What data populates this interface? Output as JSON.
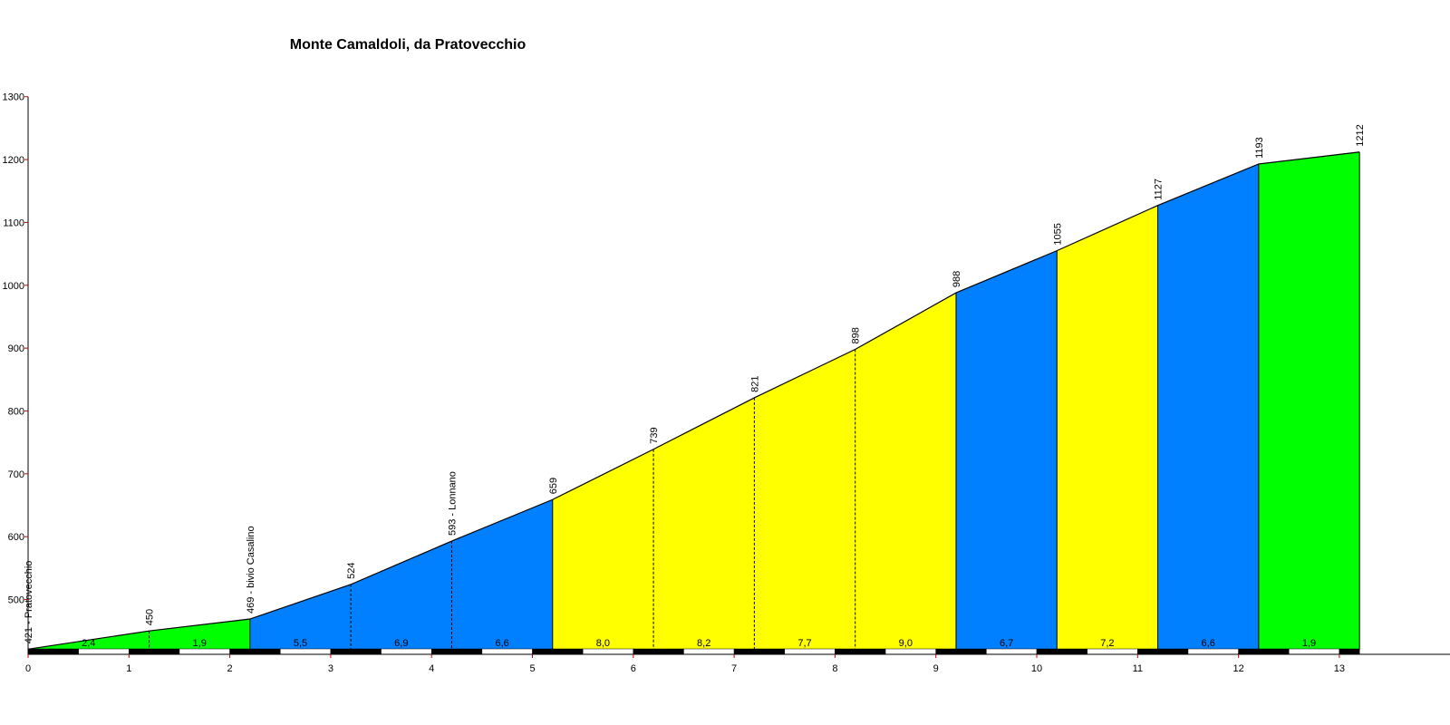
{
  "chart_data": {
    "type": "area",
    "title": "Monte Camaldoli, da Pratovecchio",
    "xlabel": "",
    "ylabel": "",
    "xlim": [
      0,
      13.7
    ],
    "ylim": [
      420,
      1300
    ],
    "x_ticks": [
      "0",
      "1",
      "2",
      "3",
      "4",
      "5",
      "6",
      "7",
      "8",
      "9",
      "10",
      "11",
      "12",
      "13"
    ],
    "y_ticks": [
      "500",
      "600",
      "700",
      "800",
      "900",
      "1000",
      "1100",
      "1200",
      "1300"
    ],
    "profile": [
      {
        "km": 0.0,
        "alt": 421,
        "label": "421 - Pratovecchio"
      },
      {
        "km": 1.2,
        "alt": 450,
        "label": "450"
      },
      {
        "km": 2.2,
        "alt": 469,
        "label": "469 - bivio Casalino"
      },
      {
        "km": 3.2,
        "alt": 524,
        "label": "524"
      },
      {
        "km": 4.2,
        "alt": 593,
        "label": "593 - Lonnano"
      },
      {
        "km": 5.2,
        "alt": 659,
        "label": "659"
      },
      {
        "km": 6.2,
        "alt": 739,
        "label": "739"
      },
      {
        "km": 7.2,
        "alt": 821,
        "label": "821"
      },
      {
        "km": 8.2,
        "alt": 898,
        "label": "898"
      },
      {
        "km": 9.2,
        "alt": 988,
        "label": "988"
      },
      {
        "km": 10.2,
        "alt": 1055,
        "label": "1055"
      },
      {
        "km": 11.2,
        "alt": 1127,
        "label": "1127"
      },
      {
        "km": 12.2,
        "alt": 1193,
        "label": "1193"
      },
      {
        "km": 13.2,
        "alt": 1212,
        "label": "1212"
      }
    ],
    "segments": [
      {
        "gradient": "2,4",
        "color": "#00ff00"
      },
      {
        "gradient": "1,9",
        "color": "#00ff00"
      },
      {
        "gradient": "5,5",
        "color": "#0080ff"
      },
      {
        "gradient": "6,9",
        "color": "#0080ff"
      },
      {
        "gradient": "6,6",
        "color": "#0080ff"
      },
      {
        "gradient": "8,0",
        "color": "#ffff00"
      },
      {
        "gradient": "8,2",
        "color": "#ffff00"
      },
      {
        "gradient": "7,7",
        "color": "#ffff00"
      },
      {
        "gradient": "9,0",
        "color": "#ffff00"
      },
      {
        "gradient": "6,7",
        "color": "#0080ff"
      },
      {
        "gradient": "7,2",
        "color": "#ffff00"
      },
      {
        "gradient": "6,6",
        "color": "#0080ff"
      },
      {
        "gradient": "1,9",
        "color": "#00ff00"
      }
    ],
    "solid_dividers_km": [
      2.2,
      5.2,
      9.2,
      10.2,
      11.2,
      12.2
    ],
    "grid": false,
    "colors": {
      "axis": "#000000",
      "tick_mark": "#c00000",
      "profile_line": "#000000"
    }
  }
}
